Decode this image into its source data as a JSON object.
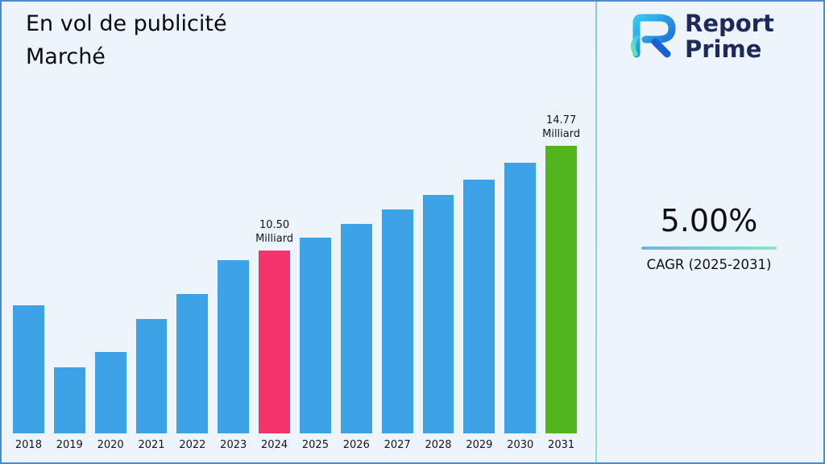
{
  "header": {
    "title_line1": "En vol de publicité",
    "title_line2": "Marché"
  },
  "brand": {
    "name_line1": "Report",
    "name_line2": "Prime"
  },
  "stats": {
    "cagr_value": "5.00%",
    "cagr_label": "CAGR (2025-2031)"
  },
  "chart_data": {
    "type": "bar",
    "title": "En vol de publicité Marché",
    "xlabel": "",
    "ylabel": "",
    "ylim": [
      0,
      16
    ],
    "grid": false,
    "legend": false,
    "unit": "Milliard",
    "categories": [
      "2018",
      "2019",
      "2020",
      "2021",
      "2022",
      "2023",
      "2024",
      "2025",
      "2026",
      "2027",
      "2028",
      "2029",
      "2030",
      "2031"
    ],
    "values": [
      8.26,
      5.72,
      6.35,
      7.7,
      8.72,
      10.1,
      10.5,
      11.03,
      11.58,
      12.16,
      12.76,
      13.4,
      14.07,
      14.77
    ],
    "bar_color_default": "#3DA2E6",
    "annotations": [
      {
        "category": "2024",
        "value_label": "10.50",
        "unit": "Milliard",
        "color": "#F4326B"
      },
      {
        "category": "2031",
        "value_label": "14.77",
        "unit": "Milliard",
        "color": "#52B51E"
      }
    ]
  }
}
